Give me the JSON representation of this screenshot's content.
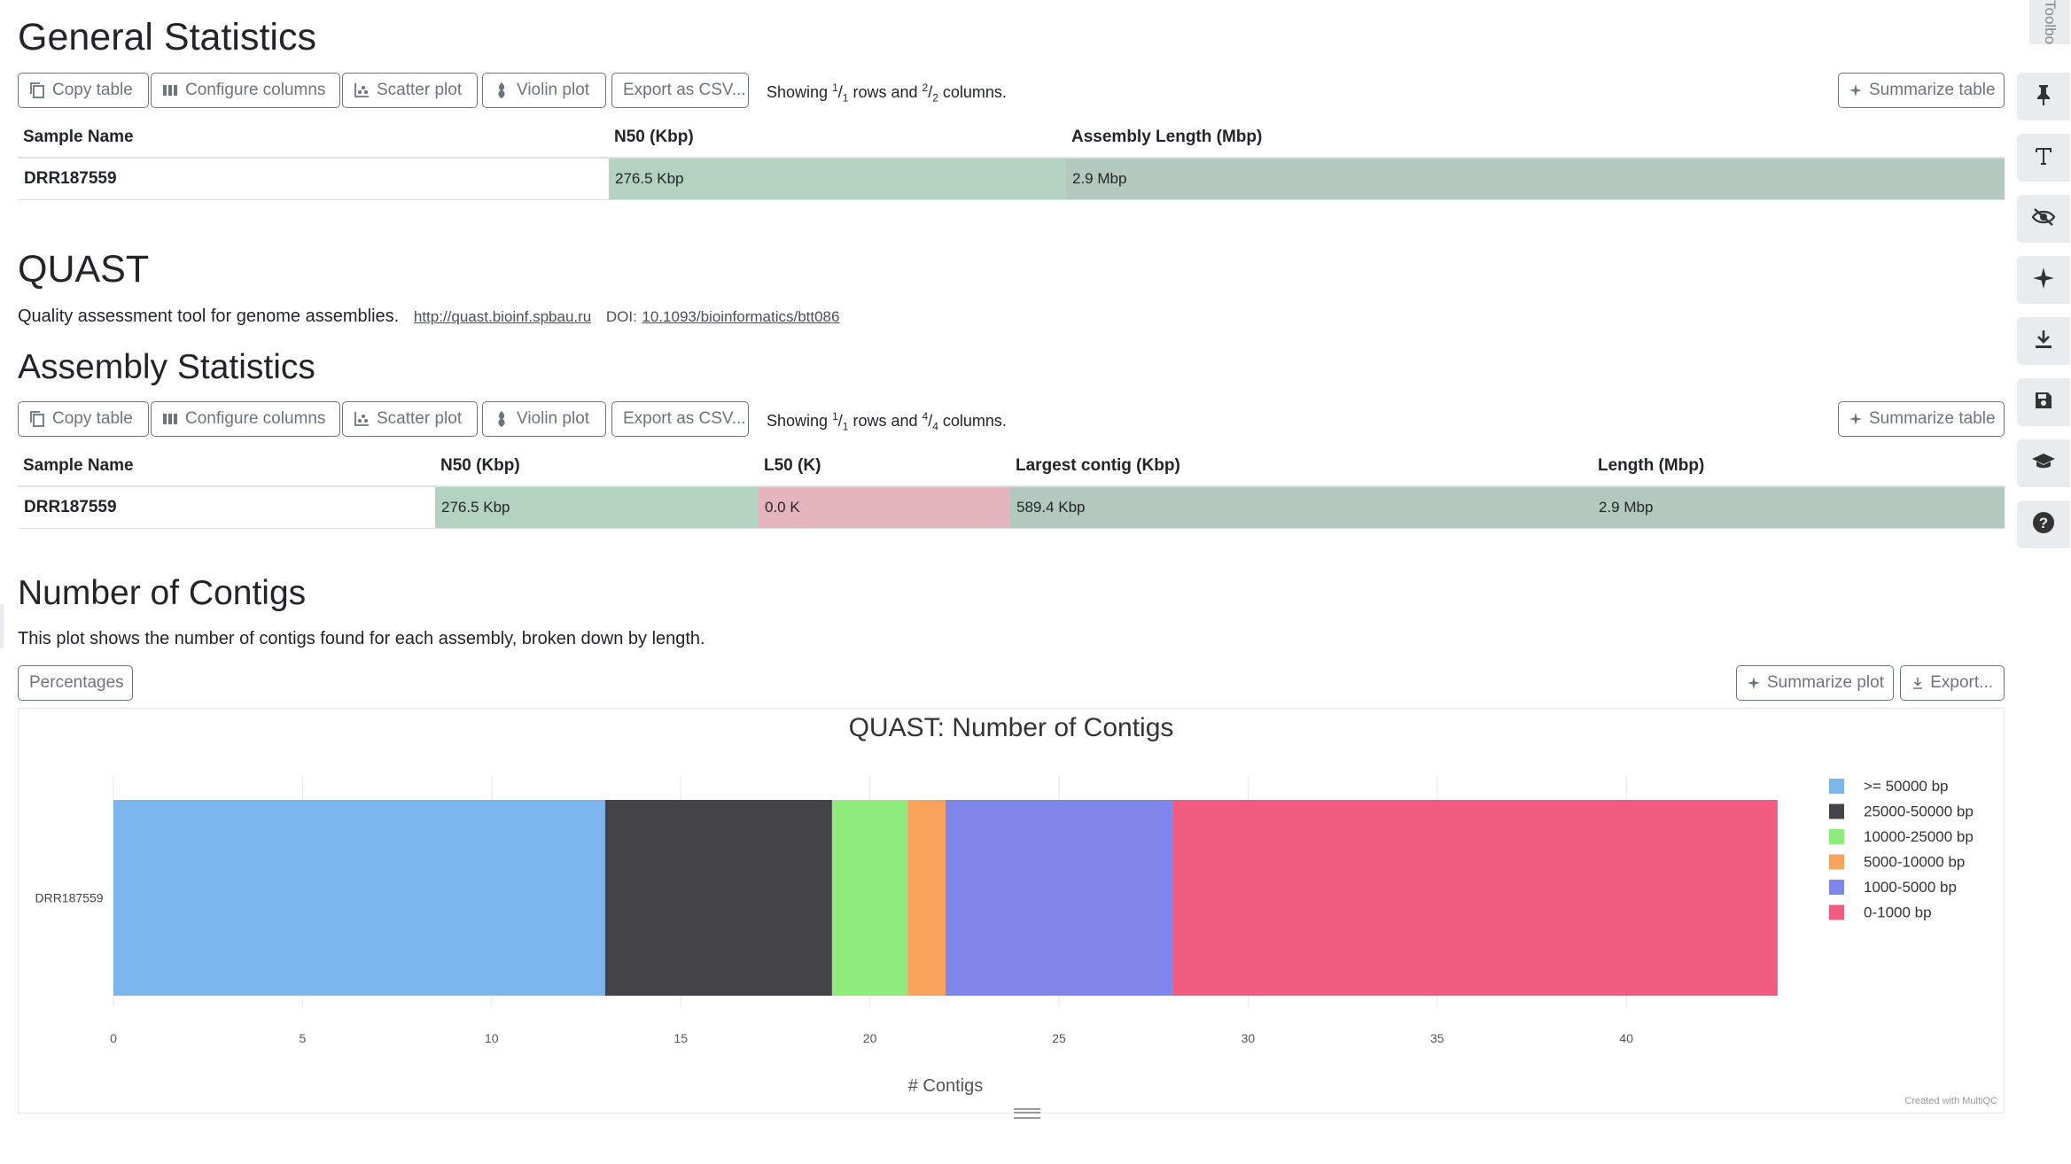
{
  "toolbar_labels": {
    "copy": "Copy table",
    "configure": "Configure columns",
    "scatter": "Scatter plot",
    "violin": "Violin plot",
    "export_csv": "Export as CSV...",
    "summarize": "Summarize table"
  },
  "general_stats": {
    "title": "General Statistics",
    "showing": {
      "prefix": "Showing ",
      "rows_num": "1",
      "rows_den": "1",
      "mid": " rows and ",
      "cols_num": "2",
      "cols_den": "2",
      "suffix": " columns."
    },
    "headers": [
      "Sample Name",
      "N50 (Kbp)",
      "Assembly Length (Mbp)"
    ],
    "row": {
      "sample": "DRR187559",
      "n50": "276.5 Kbp",
      "length": "2.9 Mbp"
    }
  },
  "quast": {
    "title": "QUAST",
    "description": "Quality assessment tool for genome assemblies.",
    "url": "http://quast.bioinf.spbau.ru",
    "doi_label": "DOI:",
    "doi": "10.1093/bioinformatics/btt086"
  },
  "assembly_stats": {
    "title": "Assembly Statistics",
    "showing": {
      "prefix": "Showing ",
      "rows_num": "1",
      "rows_den": "1",
      "mid": " rows and ",
      "cols_num": "4",
      "cols_den": "4",
      "suffix": " columns."
    },
    "headers": [
      "Sample Name",
      "N50 (Kbp)",
      "L50 (K)",
      "Largest contig (Kbp)",
      "Length (Mbp)"
    ],
    "row": {
      "sample": "DRR187559",
      "n50": "276.5 Kbp",
      "l50": "0.0 K",
      "largest": "589.4 Kbp",
      "length": "2.9 Mbp"
    }
  },
  "contigs_section": {
    "title": "Number of Contigs",
    "description": "This plot shows the number of contigs found for each assembly, broken down by length.",
    "percentages_label": "Percentages",
    "summarize_plot_label": "Summarize plot",
    "export_label": "Export...",
    "credit": "Created with MultiQC"
  },
  "colors": {
    "n50_bg": "#b3d2c2",
    "length_bg": "#b3c9bd",
    "l50_bg": "#e4b5bf"
  },
  "chart_data": {
    "type": "bar",
    "orientation": "horizontal",
    "stacked": true,
    "title": "QUAST: Number of Contigs",
    "xlabel": "# Contigs",
    "ylabel": "",
    "categories": [
      "DRR187559"
    ],
    "xlim": [
      0,
      45
    ],
    "xticks": [
      0,
      5,
      10,
      15,
      20,
      25,
      30,
      35,
      40
    ],
    "grid": true,
    "legend_position": "right",
    "series": [
      {
        "name": ">= 50000 bp",
        "values": [
          13
        ],
        "color": "#7cb5ec"
      },
      {
        "name": "25000-50000 bp",
        "values": [
          6
        ],
        "color": "#434348"
      },
      {
        "name": "10000-25000 bp",
        "values": [
          2
        ],
        "color": "#90ed7d"
      },
      {
        "name": "5000-10000 bp",
        "values": [
          1
        ],
        "color": "#f7a35c"
      },
      {
        "name": "1000-5000 bp",
        "values": [
          6
        ],
        "color": "#8085e9"
      },
      {
        "name": "0-1000 bp",
        "values": [
          16
        ],
        "color": "#f15c80"
      }
    ]
  },
  "sidebar": {
    "tab_label": "Toolbox",
    "icons": [
      "pin-icon",
      "text-icon",
      "eye-slash-icon",
      "sparkle-icon",
      "download-icon",
      "save-icon",
      "graduation-cap-icon",
      "help-icon"
    ]
  }
}
